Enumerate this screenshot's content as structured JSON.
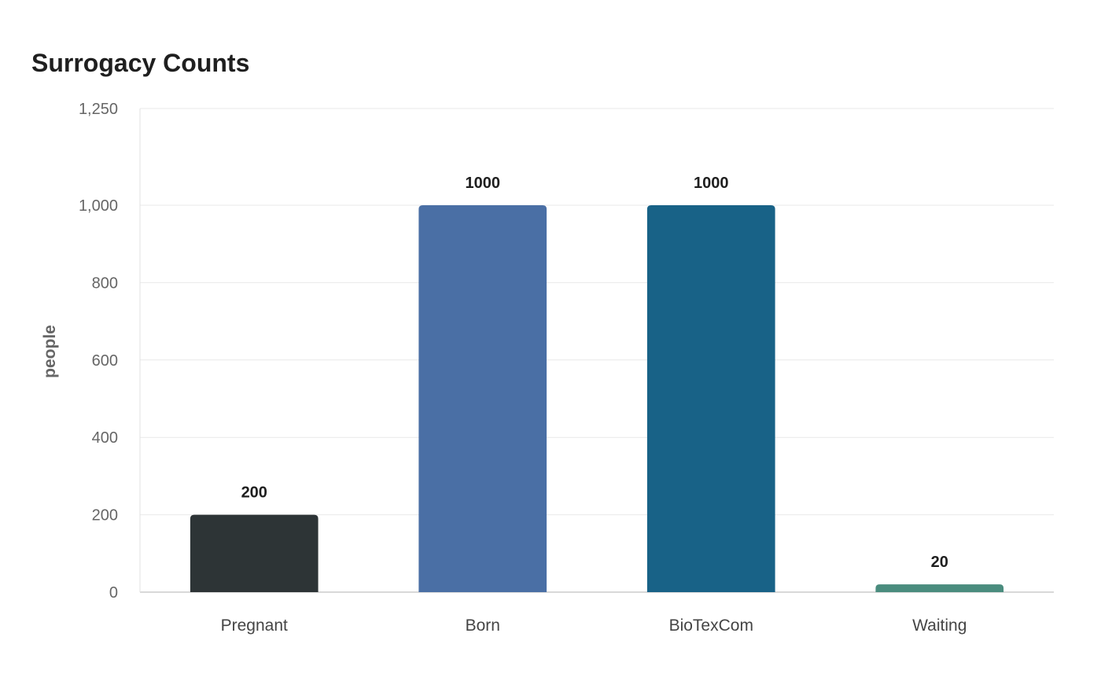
{
  "chart_data": {
    "type": "bar",
    "title": "Surrogacy Counts",
    "xlabel": "",
    "ylabel": "people",
    "categories": [
      "Pregnant",
      "Born",
      "BioTexCom",
      "Waiting"
    ],
    "values": [
      200,
      1000,
      1000,
      20
    ],
    "data_labels": [
      "200",
      "1000",
      "1000",
      "20"
    ],
    "colors": [
      "#2d3436",
      "#4a6fa5",
      "#186287",
      "#4a8c7e"
    ],
    "ylim": [
      0,
      1250
    ],
    "yticks": [
      0,
      200,
      400,
      600,
      800,
      1000,
      1250
    ],
    "ytick_labels": [
      "0",
      "200",
      "400",
      "600",
      "800",
      "1,000",
      "1,250"
    ],
    "grid": true,
    "legend": false
  }
}
